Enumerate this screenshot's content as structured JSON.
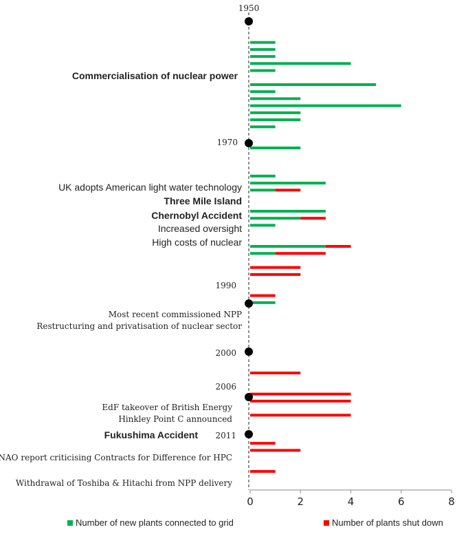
{
  "chart_data": {
    "type": "bar",
    "orientation": "horizontal",
    "xlim": [
      0,
      8
    ],
    "x_ticks": [
      "0",
      "2",
      "4",
      "6",
      "8"
    ],
    "legend": [
      {
        "label": "Number of new plants connected to grid",
        "color": "#00b050"
      },
      {
        "label": "Number of plants shut down",
        "color": "#ff0000"
      }
    ],
    "year_markers": [
      "1950",
      "1970",
      "1990",
      "2000",
      "2006",
      "2011"
    ],
    "annotations": [
      {
        "text": "Commercialisation of nuclear power",
        "bold": true
      },
      {
        "text": "UK adopts American light water technology",
        "bold": false
      },
      {
        "text": "Three Mile Island",
        "bold": true
      },
      {
        "text": "Chernobyl Accident",
        "bold": true
      },
      {
        "text": "Increased oversight",
        "bold": false
      },
      {
        "text": "High costs of nuclear",
        "bold": false
      },
      {
        "text": "Most recent commissioned NPP",
        "bold": false
      },
      {
        "text": "Restructuring and privatisation of nuclear sector",
        "bold": false
      },
      {
        "text": "EdF takeover of British Energy",
        "bold": false
      },
      {
        "text": "Hinkley Point C announced",
        "bold": false
      },
      {
        "text": "Fukushima Accident",
        "bold": true
      },
      {
        "text": "NAO report criticising Contracts for Difference for HPC",
        "bold": false
      },
      {
        "text": "Withdrawal of Toshiba & Hitachi from NPP delivery",
        "bold": false
      }
    ],
    "series": [
      {
        "name": "Number of new plants connected to grid",
        "rows": [
          {
            "year": 1950,
            "value": 0
          },
          {
            "year": 1951,
            "value": 0
          },
          {
            "year": 1952,
            "value": 0
          },
          {
            "year": 1953,
            "value": 1
          },
          {
            "year": 1954,
            "value": 1
          },
          {
            "year": 1955,
            "value": 1
          },
          {
            "year": 1956,
            "value": 4
          },
          {
            "year": 1957,
            "value": 1
          },
          {
            "year": 1958,
            "value": 0
          },
          {
            "year": 1959,
            "value": 5
          },
          {
            "year": 1960,
            "value": 1
          },
          {
            "year": 1961,
            "value": 2
          },
          {
            "year": 1962,
            "value": 6
          },
          {
            "year": 1963,
            "value": 2
          },
          {
            "year": 1964,
            "value": 2
          },
          {
            "year": 1965,
            "value": 1
          },
          {
            "year": 1966,
            "value": 0
          },
          {
            "year": 1967,
            "value": 0
          },
          {
            "year": 1968,
            "value": 2
          },
          {
            "year": 1969,
            "value": 0
          },
          {
            "year": 1970,
            "value": 0
          },
          {
            "year": 1971,
            "value": 0
          },
          {
            "year": 1972,
            "value": 1
          },
          {
            "year": 1973,
            "value": 3
          },
          {
            "year": 1974,
            "value": 1
          },
          {
            "year": 1975,
            "value": 0
          },
          {
            "year": 1976,
            "value": 0
          },
          {
            "year": 1977,
            "value": 3
          },
          {
            "year": 1978,
            "value": 2
          },
          {
            "year": 1979,
            "value": 1
          },
          {
            "year": 1980,
            "value": 0
          },
          {
            "year": 1981,
            "value": 0
          },
          {
            "year": 1982,
            "value": 3
          },
          {
            "year": 1983,
            "value": 1
          },
          {
            "year": 1984,
            "value": 0
          },
          {
            "year": 1985,
            "value": 0
          },
          {
            "year": 1986,
            "value": 0
          },
          {
            "year": 1987,
            "value": 0
          },
          {
            "year": 1988,
            "value": 0
          },
          {
            "year": 1989,
            "value": 0
          },
          {
            "year": 1990,
            "value": 1
          },
          {
            "year": 1991,
            "value": 0
          },
          {
            "year": 1992,
            "value": 0
          },
          {
            "year": 1993,
            "value": 0
          },
          {
            "year": 1994,
            "value": 0
          },
          {
            "year": 1995,
            "value": 0
          },
          {
            "year": 1996,
            "value": 0
          },
          {
            "year": 1997,
            "value": 0
          },
          {
            "year": 1998,
            "value": 0
          },
          {
            "year": 1999,
            "value": 0
          },
          {
            "year": 2000,
            "value": 0
          },
          {
            "year": 2001,
            "value": 0
          },
          {
            "year": 2002,
            "value": 0
          },
          {
            "year": 2003,
            "value": 0
          },
          {
            "year": 2004,
            "value": 0
          },
          {
            "year": 2005,
            "value": 0
          },
          {
            "year": 2006,
            "value": 0
          },
          {
            "year": 2007,
            "value": 0
          },
          {
            "year": 2008,
            "value": 0
          },
          {
            "year": 2009,
            "value": 0
          },
          {
            "year": 2010,
            "value": 0
          },
          {
            "year": 2011,
            "value": 0
          },
          {
            "year": 2012,
            "value": 0
          },
          {
            "year": 2013,
            "value": 0
          },
          {
            "year": 2014,
            "value": 0
          },
          {
            "year": 2015,
            "value": 0
          },
          {
            "year": 2016,
            "value": 0
          }
        ]
      },
      {
        "name": "Number of plants shut down",
        "rows": [
          {
            "year": 1950,
            "value": 0
          },
          {
            "year": 1951,
            "value": 0
          },
          {
            "year": 1952,
            "value": 0
          },
          {
            "year": 1953,
            "value": 0
          },
          {
            "year": 1954,
            "value": 0
          },
          {
            "year": 1955,
            "value": 0
          },
          {
            "year": 1956,
            "value": 0
          },
          {
            "year": 1957,
            "value": 0
          },
          {
            "year": 1958,
            "value": 0
          },
          {
            "year": 1959,
            "value": 0
          },
          {
            "year": 1960,
            "value": 0
          },
          {
            "year": 1961,
            "value": 0
          },
          {
            "year": 1962,
            "value": 0
          },
          {
            "year": 1963,
            "value": 0
          },
          {
            "year": 1964,
            "value": 0
          },
          {
            "year": 1965,
            "value": 0
          },
          {
            "year": 1966,
            "value": 0
          },
          {
            "year": 1967,
            "value": 0
          },
          {
            "year": 1968,
            "value": 0
          },
          {
            "year": 1969,
            "value": 0
          },
          {
            "year": 1970,
            "value": 0
          },
          {
            "year": 1971,
            "value": 0
          },
          {
            "year": 1972,
            "value": 0
          },
          {
            "year": 1973,
            "value": 0
          },
          {
            "year": 1974,
            "value": 1
          },
          {
            "year": 1975,
            "value": 0
          },
          {
            "year": 1976,
            "value": 0
          },
          {
            "year": 1977,
            "value": 0
          },
          {
            "year": 1978,
            "value": 1
          },
          {
            "year": 1979,
            "value": 0
          },
          {
            "year": 1980,
            "value": 0
          },
          {
            "year": 1981,
            "value": 0
          },
          {
            "year": 1982,
            "value": 1
          },
          {
            "year": 1983,
            "value": 2
          },
          {
            "year": 1984,
            "value": 0
          },
          {
            "year": 1985,
            "value": 2
          },
          {
            "year": 1986,
            "value": 2
          },
          {
            "year": 1987,
            "value": 0
          },
          {
            "year": 1988,
            "value": 0
          },
          {
            "year": 1989,
            "value": 1
          },
          {
            "year": 1990,
            "value": 0
          },
          {
            "year": 1991,
            "value": 0
          },
          {
            "year": 1992,
            "value": 0
          },
          {
            "year": 1993,
            "value": 0
          },
          {
            "year": 1994,
            "value": 0
          },
          {
            "year": 1995,
            "value": 0
          },
          {
            "year": 1996,
            "value": 0
          },
          {
            "year": 1997,
            "value": 0
          },
          {
            "year": 1998,
            "value": 0
          },
          {
            "year": 1999,
            "value": 0
          },
          {
            "year": 2000,
            "value": 2
          },
          {
            "year": 2001,
            "value": 0
          },
          {
            "year": 2002,
            "value": 0
          },
          {
            "year": 2003,
            "value": 4
          },
          {
            "year": 2004,
            "value": 4
          },
          {
            "year": 2005,
            "value": 0
          },
          {
            "year": 2006,
            "value": 4
          },
          {
            "year": 2007,
            "value": 0
          },
          {
            "year": 2008,
            "value": 0
          },
          {
            "year": 2009,
            "value": 0
          },
          {
            "year": 2010,
            "value": 1
          },
          {
            "year": 2011,
            "value": 2
          },
          {
            "year": 2012,
            "value": 0
          },
          {
            "year": 2013,
            "value": 0
          },
          {
            "year": 2014,
            "value": 1
          },
          {
            "year": 2015,
            "value": 0
          },
          {
            "year": 2016,
            "value": 0
          }
        ]
      }
    ]
  }
}
